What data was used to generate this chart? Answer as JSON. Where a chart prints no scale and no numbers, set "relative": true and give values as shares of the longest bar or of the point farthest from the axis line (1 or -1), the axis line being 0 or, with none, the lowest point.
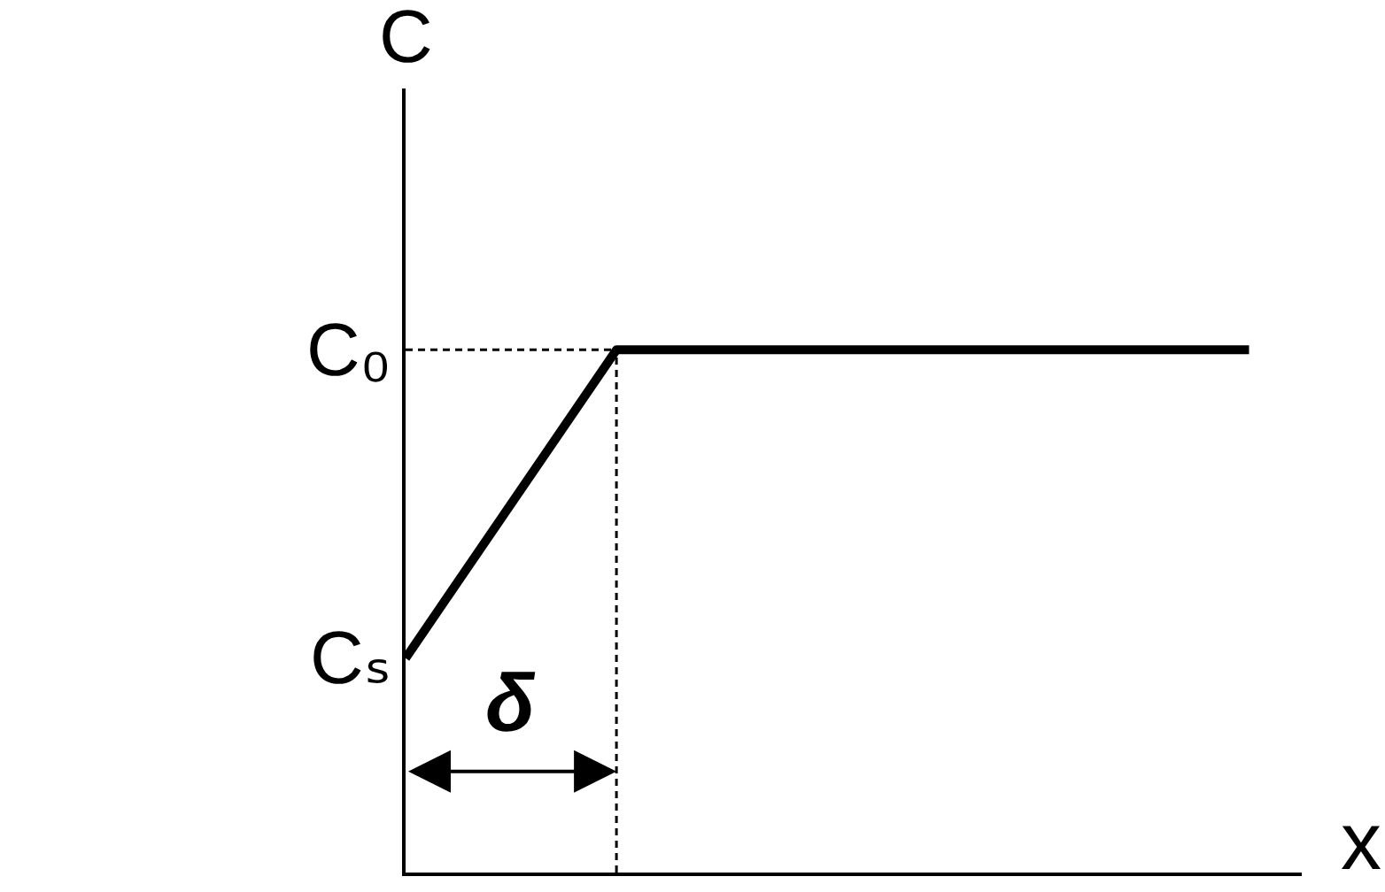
{
  "chart_data": {
    "type": "line",
    "relative": true,
    "xlabel": "x",
    "ylabel": "C",
    "categories": [
      null,
      null,
      null,
      null,
      null
    ],
    "series": [
      {
        "color": "#000000",
        "values": [
          0.41,
          1,
          1,
          1,
          1
        ]
      }
    ],
    "ref_lines": [
      {
        "axis": "y",
        "value": 1,
        "label": "C₀",
        "color": "#000000",
        "line_style": "dashed"
      }
    ],
    "annotations": [
      "Cₛ",
      "δ"
    ]
  }
}
